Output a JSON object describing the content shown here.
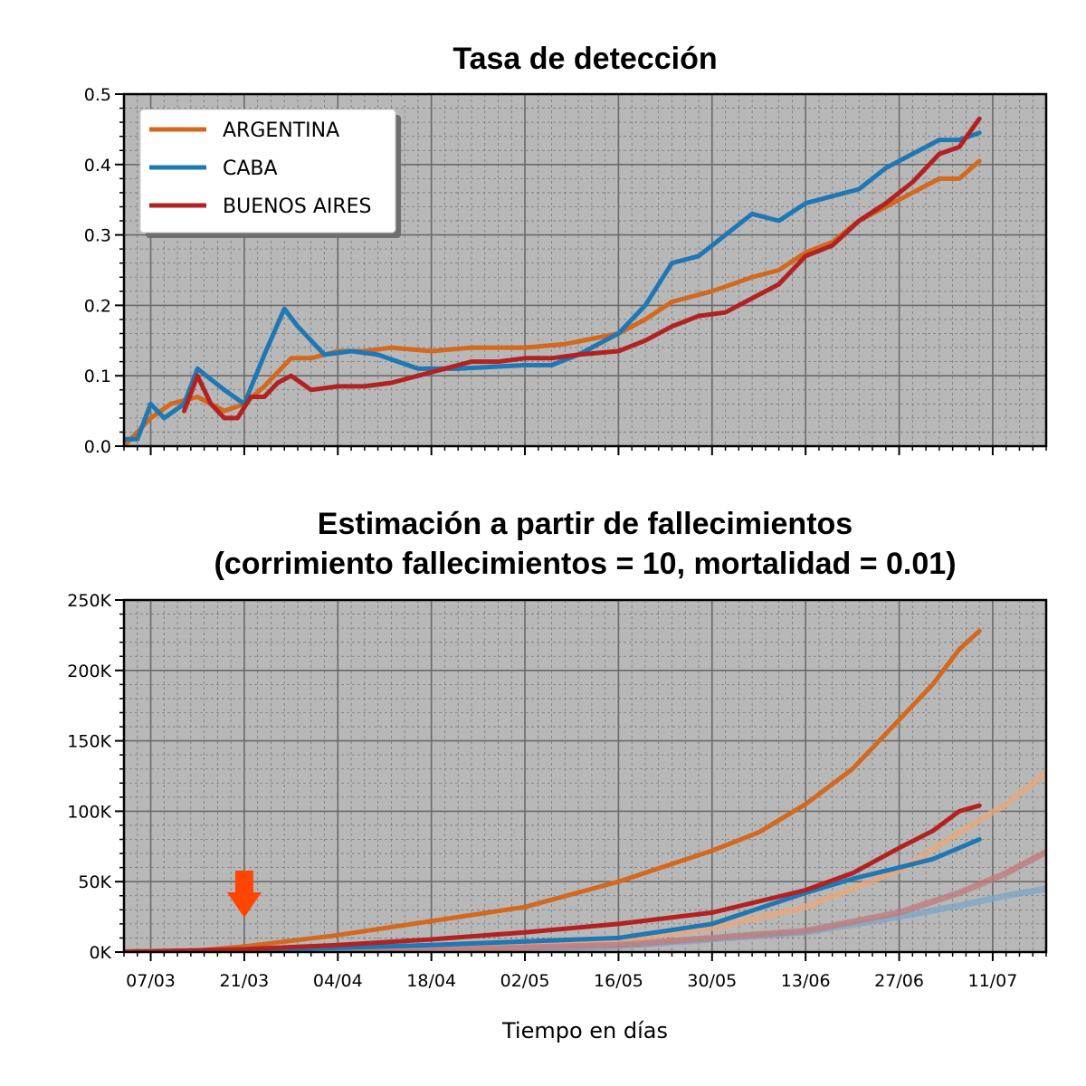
{
  "chart_data": [
    {
      "type": "line",
      "title": "Tasa de detección",
      "ylim": [
        0,
        0.5
      ],
      "yticks": [
        "0.0",
        "0.1",
        "0.2",
        "0.3",
        "0.4",
        "0.5"
      ],
      "grid": true,
      "legend_position": "top-left",
      "series": [
        {
          "name": "ARGENTINA",
          "color": "#d2691e",
          "x": [
            "2020-03-03",
            "2020-03-07",
            "2020-03-10",
            "2020-03-14",
            "2020-03-18",
            "2020-03-21",
            "2020-03-24",
            "2020-03-28",
            "2020-03-31",
            "2020-04-04",
            "2020-04-08",
            "2020-04-12",
            "2020-04-18",
            "2020-04-24",
            "2020-05-02",
            "2020-05-08",
            "2020-05-16",
            "2020-05-20",
            "2020-05-24",
            "2020-05-30",
            "2020-06-05",
            "2020-06-09",
            "2020-06-13",
            "2020-06-17",
            "2020-06-21",
            "2020-06-27",
            "2020-07-01",
            "2020-07-03",
            "2020-07-06",
            "2020-07-09"
          ],
          "values": [
            0.0,
            0.04,
            0.06,
            0.07,
            0.05,
            0.06,
            0.085,
            0.125,
            0.125,
            0.135,
            0.135,
            0.14,
            0.135,
            0.14,
            0.14,
            0.145,
            0.16,
            0.18,
            0.205,
            0.22,
            0.24,
            0.25,
            0.275,
            0.29,
            0.32,
            0.35,
            0.37,
            0.38,
            0.38,
            0.405
          ]
        },
        {
          "name": "CABA",
          "color": "#1f77b4",
          "x": [
            "2020-03-03",
            "2020-03-05",
            "2020-03-07",
            "2020-03-09",
            "2020-03-12",
            "2020-03-14",
            "2020-03-18",
            "2020-03-21",
            "2020-03-24",
            "2020-03-27",
            "2020-03-29",
            "2020-04-02",
            "2020-04-06",
            "2020-04-10",
            "2020-04-16",
            "2020-04-22",
            "2020-05-02",
            "2020-05-06",
            "2020-05-10",
            "2020-05-16",
            "2020-05-20",
            "2020-05-24",
            "2020-05-28",
            "2020-06-01",
            "2020-06-05",
            "2020-06-09",
            "2020-06-13",
            "2020-06-17",
            "2020-06-21",
            "2020-06-25",
            "2020-06-29",
            "2020-07-03",
            "2020-07-06",
            "2020-07-09"
          ],
          "values": [
            0.01,
            0.01,
            0.06,
            0.04,
            0.06,
            0.11,
            0.08,
            0.06,
            0.13,
            0.195,
            0.17,
            0.13,
            0.135,
            0.13,
            0.11,
            0.11,
            0.115,
            0.115,
            0.13,
            0.16,
            0.2,
            0.26,
            0.27,
            0.3,
            0.33,
            0.32,
            0.345,
            0.355,
            0.365,
            0.395,
            0.415,
            0.435,
            0.435,
            0.445
          ]
        },
        {
          "name": "BUENOS AIRES",
          "color": "#b22222",
          "x": [
            "2020-03-12",
            "2020-03-14",
            "2020-03-16",
            "2020-03-18",
            "2020-03-20",
            "2020-03-22",
            "2020-03-24",
            "2020-03-26",
            "2020-03-28",
            "2020-03-31",
            "2020-04-04",
            "2020-04-08",
            "2020-04-12",
            "2020-04-16",
            "2020-04-20",
            "2020-04-24",
            "2020-04-28",
            "2020-05-02",
            "2020-05-06",
            "2020-05-10",
            "2020-05-16",
            "2020-05-20",
            "2020-05-24",
            "2020-05-28",
            "2020-06-01",
            "2020-06-05",
            "2020-06-09",
            "2020-06-13",
            "2020-06-17",
            "2020-06-21",
            "2020-06-25",
            "2020-06-29",
            "2020-07-03",
            "2020-07-06",
            "2020-07-09"
          ],
          "values": [
            0.05,
            0.1,
            0.06,
            0.04,
            0.04,
            0.07,
            0.07,
            0.09,
            0.1,
            0.08,
            0.085,
            0.085,
            0.09,
            0.1,
            0.11,
            0.12,
            0.12,
            0.125,
            0.125,
            0.13,
            0.135,
            0.15,
            0.17,
            0.185,
            0.19,
            0.21,
            0.23,
            0.27,
            0.285,
            0.32,
            0.345,
            0.375,
            0.415,
            0.425,
            0.465
          ]
        }
      ]
    },
    {
      "type": "line",
      "title": "Estimación a partir de fallecimientos\n(corrimiento fallecimientos = 10, mortalidad = 0.01)",
      "title_lines": [
        "Estimación a partir de fallecimientos",
        "(corrimiento fallecimientos = 10, mortalidad = 0.01)"
      ],
      "xlabel": "Tiempo en días",
      "ylim": [
        0,
        250000
      ],
      "yticks": [
        "0K",
        "50K",
        "100K",
        "150K",
        "200K",
        "250K"
      ],
      "xticks": [
        "07/03",
        "21/03",
        "04/04",
        "18/04",
        "02/05",
        "16/05",
        "30/05",
        "13/06",
        "27/06",
        "11/07"
      ],
      "xticks_dates": [
        "2020-03-07",
        "2020-03-21",
        "2020-04-04",
        "2020-04-18",
        "2020-05-02",
        "2020-05-16",
        "2020-05-30",
        "2020-06-13",
        "2020-06-27",
        "2020-07-11"
      ],
      "xlim": [
        "2020-03-03",
        "2020-07-19"
      ],
      "grid": true,
      "annotation": {
        "type": "arrow-down",
        "x": "2020-03-21",
        "color": "#ff4500"
      },
      "series": [
        {
          "name": "ARGENTINA",
          "color": "#d2691e",
          "x": [
            "2020-03-03",
            "2020-03-14",
            "2020-03-21",
            "2020-04-04",
            "2020-04-18",
            "2020-05-02",
            "2020-05-16",
            "2020-05-30",
            "2020-06-06",
            "2020-06-13",
            "2020-06-20",
            "2020-06-27",
            "2020-07-02",
            "2020-07-06",
            "2020-07-09"
          ],
          "values": [
            0,
            1000,
            4000,
            12000,
            22000,
            32000,
            50000,
            72000,
            85000,
            105000,
            130000,
            165000,
            190000,
            215000,
            228000
          ]
        },
        {
          "name": "CABA",
          "color": "#1f77b4",
          "x": [
            "2020-03-03",
            "2020-03-21",
            "2020-04-18",
            "2020-05-16",
            "2020-05-30",
            "2020-06-13",
            "2020-06-20",
            "2020-06-27",
            "2020-07-02",
            "2020-07-06",
            "2020-07-09"
          ],
          "values": [
            0,
            1000,
            5000,
            10000,
            20000,
            42000,
            52000,
            60000,
            66000,
            74000,
            80000
          ]
        },
        {
          "name": "BUENOS AIRES",
          "color": "#b22222",
          "x": [
            "2020-03-03",
            "2020-03-21",
            "2020-04-04",
            "2020-04-18",
            "2020-05-02",
            "2020-05-16",
            "2020-05-30",
            "2020-06-06",
            "2020-06-13",
            "2020-06-20",
            "2020-06-27",
            "2020-07-02",
            "2020-07-06",
            "2020-07-09"
          ],
          "values": [
            0,
            2000,
            5000,
            9000,
            14000,
            20000,
            28000,
            36000,
            44000,
            56000,
            74000,
            86000,
            100000,
            104000
          ]
        },
        {
          "name": "",
          "color": "#e8a87c",
          "x": [
            "2020-03-03",
            "2020-04-18",
            "2020-05-16",
            "2020-05-30",
            "2020-06-13",
            "2020-06-27",
            "2020-07-06",
            "2020-07-13",
            "2020-07-19"
          ],
          "values": [
            0,
            2000,
            8000,
            17000,
            32000,
            58000,
            85000,
            105000,
            127000
          ]
        },
        {
          "name": "",
          "color": "#7fa6c8",
          "x": [
            "2020-03-03",
            "2020-04-18",
            "2020-05-16",
            "2020-06-13",
            "2020-06-27",
            "2020-07-06",
            "2020-07-13",
            "2020-07-19"
          ],
          "values": [
            0,
            1000,
            4000,
            14000,
            25000,
            33000,
            40000,
            45000
          ]
        },
        {
          "name": "",
          "color": "#c27a7a",
          "x": [
            "2020-03-03",
            "2020-04-18",
            "2020-05-16",
            "2020-06-13",
            "2020-06-27",
            "2020-07-06",
            "2020-07-13",
            "2020-07-19"
          ],
          "values": [
            0,
            1500,
            5000,
            15000,
            28000,
            42000,
            56000,
            71000
          ]
        }
      ]
    }
  ]
}
